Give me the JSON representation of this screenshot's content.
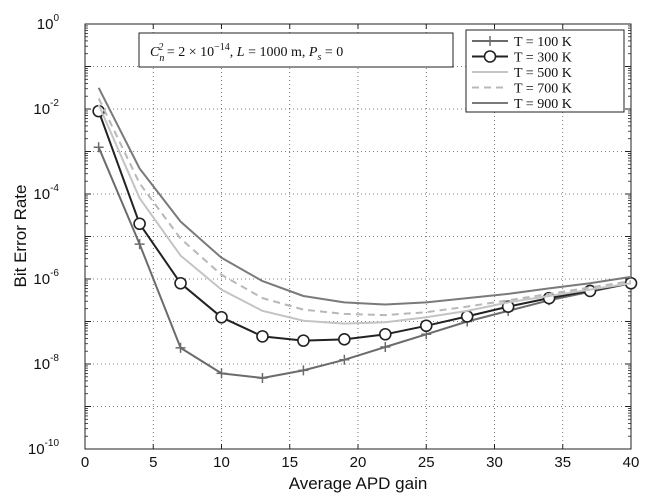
{
  "chart_data": {
    "type": "line",
    "xlabel": "Average APD gain",
    "ylabel": "Bit Error Rate",
    "xlim": [
      0,
      40
    ],
    "xticks": [
      0,
      5,
      10,
      15,
      20,
      25,
      30,
      35,
      40
    ],
    "ylim_log10": [
      -10,
      0
    ],
    "yscale": "log",
    "yticks": [
      {
        "base": "10",
        "exp": "0",
        "value_log10": 0
      },
      {
        "base": "10",
        "exp": "-2",
        "value_log10": -2
      },
      {
        "base": "10",
        "exp": "-4",
        "value_log10": -4
      },
      {
        "base": "10",
        "exp": "-6",
        "value_log10": -6
      },
      {
        "base": "10",
        "exp": "-8",
        "value_log10": -8
      },
      {
        "base": "10",
        "exp": "-10",
        "value_log10": -10
      }
    ],
    "grid": true,
    "legend_position": "top-right",
    "annotation": "C_n^2 = 2 × 10^-14, L = 1000 m, P_s = 0",
    "series": [
      {
        "name": "T = 100 K",
        "color": "#6b6b6b",
        "marker": "plus",
        "dash": "",
        "x": [
          1,
          4,
          7,
          10,
          13,
          16,
          19,
          22,
          25,
          28,
          31,
          34,
          37,
          40
        ],
        "y_log10": [
          -2.9,
          -5.18,
          -7.62,
          -8.22,
          -8.33,
          -8.15,
          -7.9,
          -7.6,
          -7.3,
          -7.0,
          -6.75,
          -6.5,
          -6.3,
          -6.1
        ]
      },
      {
        "name": "T = 300 K",
        "color": "#222222",
        "marker": "circle",
        "dash": "",
        "x": [
          1,
          4,
          7,
          10,
          13,
          16,
          19,
          22,
          25,
          28,
          31,
          34,
          37,
          40
        ],
        "y_log10": [
          -2.05,
          -4.7,
          -6.1,
          -6.9,
          -7.35,
          -7.45,
          -7.42,
          -7.3,
          -7.1,
          -6.88,
          -6.65,
          -6.45,
          -6.28,
          -6.1
        ]
      },
      {
        "name": "T = 500 K",
        "color": "#c4c4c4",
        "marker": "none",
        "dash": "",
        "x": [
          1,
          4,
          7,
          10,
          13,
          16,
          19,
          22,
          25,
          28,
          31,
          34,
          37,
          40
        ],
        "y_log10": [
          -1.9,
          -4.1,
          -5.45,
          -6.25,
          -6.75,
          -6.98,
          -7.05,
          -7.02,
          -6.9,
          -6.75,
          -6.55,
          -6.4,
          -6.25,
          -6.1
        ]
      },
      {
        "name": "T = 700 K",
        "color": "#b8b8b8",
        "marker": "none",
        "dash": "7,5",
        "x": [
          1,
          4,
          7,
          10,
          13,
          16,
          19,
          22,
          25,
          28,
          31,
          34,
          37,
          40
        ],
        "y_log10": [
          -1.75,
          -3.75,
          -5.05,
          -5.9,
          -6.45,
          -6.72,
          -6.82,
          -6.85,
          -6.78,
          -6.65,
          -6.5,
          -6.35,
          -6.2,
          -6.05
        ]
      },
      {
        "name": "T = 900 K",
        "color": "#7a7a7a",
        "marker": "none",
        "dash": "",
        "x": [
          1,
          4,
          7,
          10,
          13,
          16,
          19,
          22,
          25,
          28,
          31,
          34,
          37,
          40
        ],
        "y_log10": [
          -1.5,
          -3.4,
          -4.65,
          -5.5,
          -6.05,
          -6.4,
          -6.55,
          -6.6,
          -6.55,
          -6.45,
          -6.35,
          -6.22,
          -6.1,
          -5.95
        ]
      }
    ]
  }
}
